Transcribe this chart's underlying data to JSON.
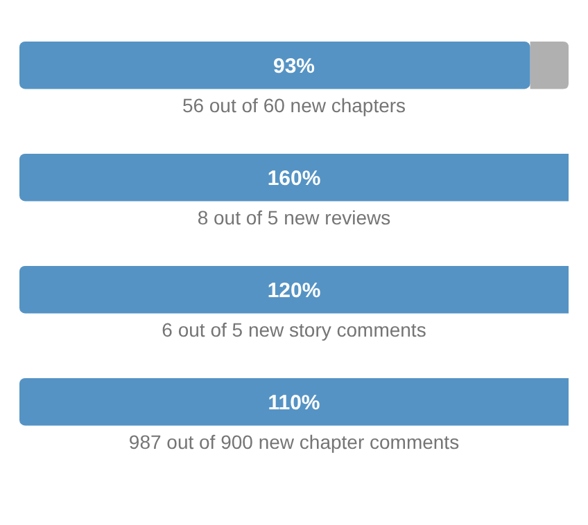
{
  "chart_data": {
    "type": "other",
    "categories": [
      "56 out of 60 new chapters",
      "8 out of 5 new reviews",
      "6 out of 5 new story comments",
      "987 out of 900 new chapter comments"
    ],
    "values": [
      93,
      160,
      120,
      110
    ],
    "value_labels": [
      "93%",
      "160%",
      "120%",
      "110%"
    ],
    "color": "#5593c4"
  }
}
